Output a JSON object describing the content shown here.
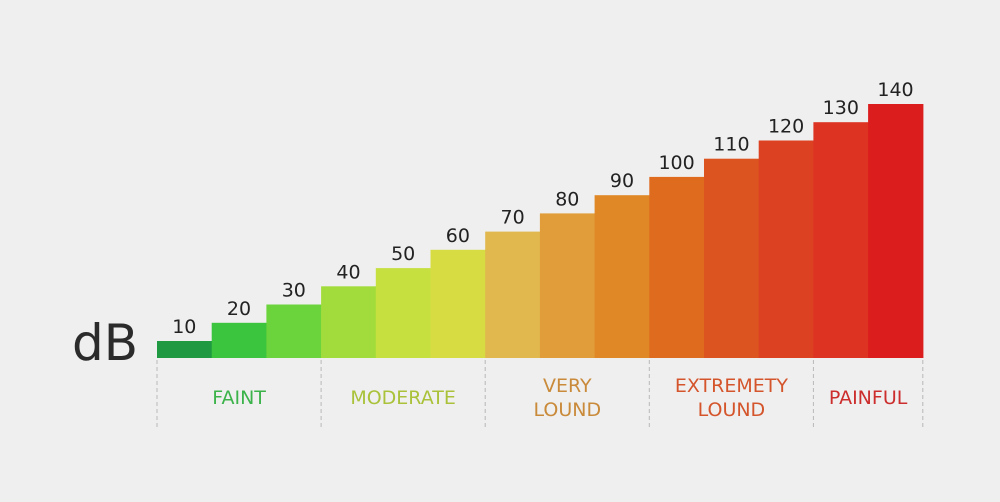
{
  "chart_data": {
    "type": "bar",
    "unit_label": "dB",
    "categories": [
      "10",
      "20",
      "30",
      "40",
      "50",
      "60",
      "70",
      "80",
      "90",
      "100",
      "110",
      "120",
      "130",
      "140"
    ],
    "values": [
      10,
      20,
      30,
      40,
      50,
      60,
      70,
      80,
      90,
      100,
      110,
      120,
      130,
      140
    ],
    "colors": [
      "#1f9a43",
      "#3bc43d",
      "#6bd33b",
      "#a2dc3c",
      "#c6e040",
      "#d8dc43",
      "#e0b84e",
      "#e09d3a",
      "#e08826",
      "#df6b1f",
      "#dc5420",
      "#dc4222",
      "#dc3322",
      "#dc1d1d"
    ],
    "groups": [
      {
        "label": [
          "FAINT"
        ],
        "color": "#3cb34a",
        "from": 0,
        "to": 2
      },
      {
        "label": [
          "MODERATE"
        ],
        "color": "#a9c23a",
        "from": 3,
        "to": 5
      },
      {
        "label": [
          "VERY",
          "LOUND"
        ],
        "color": "#c98a3a",
        "from": 6,
        "to": 8
      },
      {
        "label": [
          "EXTREMETY",
          "LOUND"
        ],
        "color": "#d4552b",
        "from": 9,
        "to": 11
      },
      {
        "label": [
          "PAINFUL"
        ],
        "color": "#cc2d2d",
        "from": 12,
        "to": 13
      }
    ]
  }
}
